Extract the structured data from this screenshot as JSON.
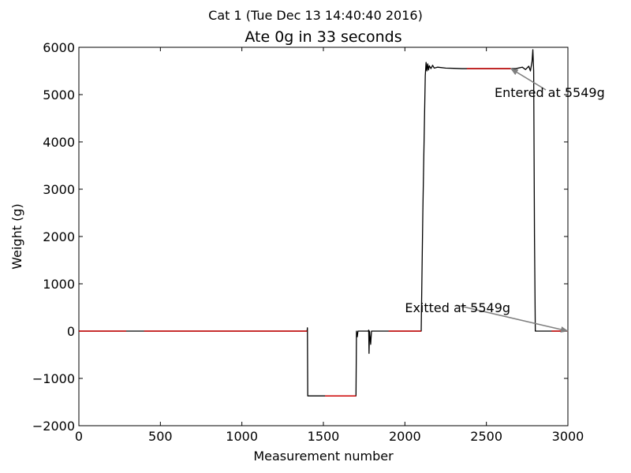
{
  "chart_data": {
    "type": "line",
    "suptitle": "Cat 1 (Tue Dec 13 14:40:40 2016)",
    "title": "Ate 0g in 33 seconds",
    "xlabel": "Measurement number",
    "ylabel": "Weight (g)",
    "xlim": [
      0,
      3000
    ],
    "ylim": [
      -2000,
      6000
    ],
    "xticks": [
      0,
      500,
      1000,
      1500,
      2000,
      2500,
      3000
    ],
    "xtick_labels": [
      "0",
      "500",
      "1000",
      "1500",
      "2000",
      "2500",
      "3000"
    ],
    "yticks": [
      -2000,
      -1000,
      0,
      1000,
      2000,
      3000,
      4000,
      5000,
      6000
    ],
    "ytick_labels": [
      "−2000",
      "−1000",
      "0",
      "1000",
      "2000",
      "3000",
      "4000",
      "5000",
      "6000"
    ],
    "grid": false,
    "series": [
      {
        "color": "#000000",
        "points": [
          [
            0,
            0
          ],
          [
            1400,
            0
          ],
          [
            1402,
            70
          ],
          [
            1404,
            -1370
          ],
          [
            1700,
            -1370
          ],
          [
            1703,
            0
          ],
          [
            1708,
            -120
          ],
          [
            1712,
            0
          ],
          [
            1775,
            0
          ],
          [
            1778,
            20
          ],
          [
            1780,
            -470
          ],
          [
            1783,
            0
          ],
          [
            1790,
            -280
          ],
          [
            1795,
            0
          ],
          [
            2100,
            0
          ],
          [
            2110,
            2500
          ],
          [
            2115,
            3500
          ],
          [
            2125,
            5400
          ],
          [
            2130,
            5680
          ],
          [
            2135,
            5500
          ],
          [
            2140,
            5650
          ],
          [
            2145,
            5520
          ],
          [
            2150,
            5610
          ],
          [
            2160,
            5550
          ],
          [
            2170,
            5620
          ],
          [
            2180,
            5560
          ],
          [
            2200,
            5580
          ],
          [
            2250,
            5560
          ],
          [
            2300,
            5555
          ],
          [
            2350,
            5549
          ],
          [
            2600,
            5549
          ],
          [
            2680,
            5549
          ],
          [
            2720,
            5580
          ],
          [
            2740,
            5530
          ],
          [
            2760,
            5600
          ],
          [
            2770,
            5500
          ],
          [
            2780,
            5700
          ],
          [
            2785,
            5950
          ],
          [
            2790,
            5500
          ],
          [
            2795,
            2000
          ],
          [
            2800,
            0
          ],
          [
            3000,
            0
          ]
        ]
      },
      {
        "color": "#cc0000",
        "segments": [
          [
            [
              0,
              0
            ],
            [
              290,
              0
            ]
          ],
          [
            [
              400,
              0
            ],
            [
              1400,
              0
            ]
          ],
          [
            [
              1510,
              -1370
            ],
            [
              1700,
              -1370
            ]
          ],
          [
            [
              1900,
              0
            ],
            [
              2100,
              0
            ]
          ],
          [
            [
              2380,
              5549
            ],
            [
              2650,
              5549
            ]
          ],
          [
            [
              2900,
              0
            ],
            [
              3000,
              0
            ]
          ]
        ]
      }
    ],
    "annotations": [
      {
        "text": "Entered at 5549g",
        "xy": [
          2650,
          5549
        ],
        "xytext": [
          2550,
          5050
        ]
      },
      {
        "text": "Exitted at 5549g",
        "xy": [
          3000,
          0
        ],
        "xytext": [
          2000,
          500
        ]
      }
    ]
  }
}
